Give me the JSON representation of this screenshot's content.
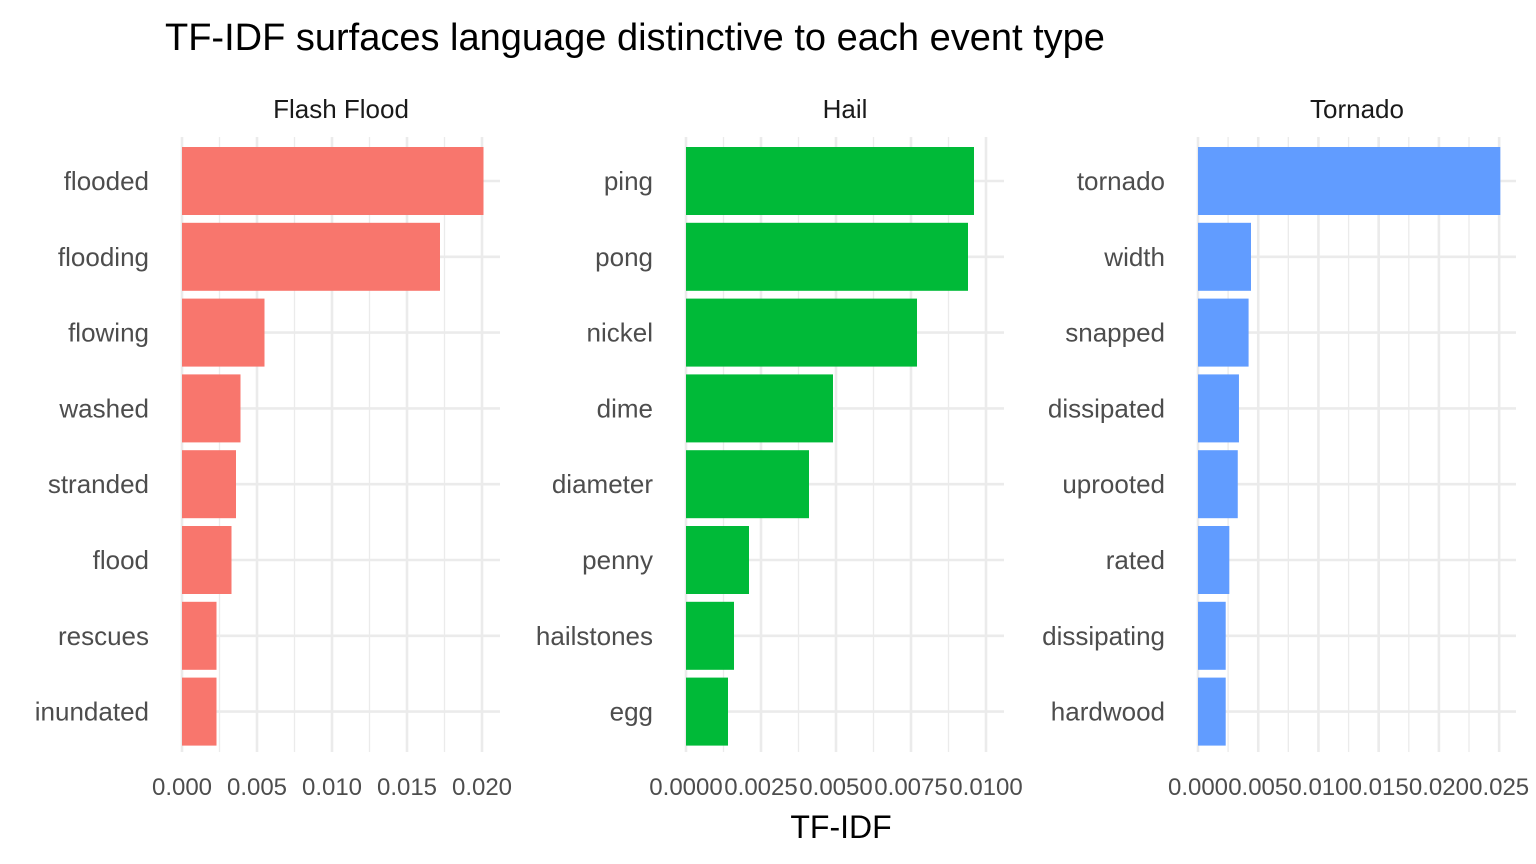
{
  "chart_data": {
    "type": "bar",
    "orientation": "horizontal",
    "title": "TF-IDF surfaces language distinctive to each event type",
    "xlabel": "TF-IDF",
    "ylabel": "",
    "grid": true,
    "legend": "none",
    "panels": [
      {
        "name": "Flash Flood",
        "color": "#F8766D",
        "xlim": [
          0,
          0.0212
        ],
        "xticks": [
          "0.000",
          "0.005",
          "0.010",
          "0.015",
          "0.020"
        ],
        "xtick_values": [
          0,
          0.005,
          0.01,
          0.015,
          0.02
        ],
        "categories": [
          "flooded",
          "flooding",
          "flowing",
          "washed",
          "stranded",
          "flood",
          "rescues",
          "inundated"
        ],
        "values": [
          0.0201,
          0.0172,
          0.0055,
          0.0039,
          0.0036,
          0.0033,
          0.0023,
          0.0023
        ]
      },
      {
        "name": "Hail",
        "color": "#00BA38",
        "xlim": [
          0,
          0.0106
        ],
        "xticks": [
          "0.0000",
          "0.0025",
          "0.0050",
          "0.0075",
          "0.0100"
        ],
        "xtick_values": [
          0,
          0.0025,
          0.005,
          0.0075,
          0.01
        ],
        "categories": [
          "ping",
          "pong",
          "nickel",
          "dime",
          "diameter",
          "penny",
          "hailstones",
          "egg"
        ],
        "values": [
          0.0096,
          0.0094,
          0.0077,
          0.0049,
          0.0041,
          0.0021,
          0.0016,
          0.0014
        ]
      },
      {
        "name": "Tornado",
        "color": "#619CFF",
        "xlim": [
          0,
          0.0264
        ],
        "xticks": [
          "0.000",
          "0.005",
          "0.010",
          "0.015",
          "0.020",
          "0.025"
        ],
        "xtick_values": [
          0,
          0.005,
          0.01,
          0.015,
          0.02,
          0.025
        ],
        "categories": [
          "tornado",
          "width",
          "snapped",
          "dissipated",
          "uprooted",
          "rated",
          "dissipating",
          "hardwood"
        ],
        "values": [
          0.0251,
          0.0044,
          0.0042,
          0.0034,
          0.0033,
          0.0026,
          0.0023,
          0.0023
        ]
      }
    ]
  }
}
